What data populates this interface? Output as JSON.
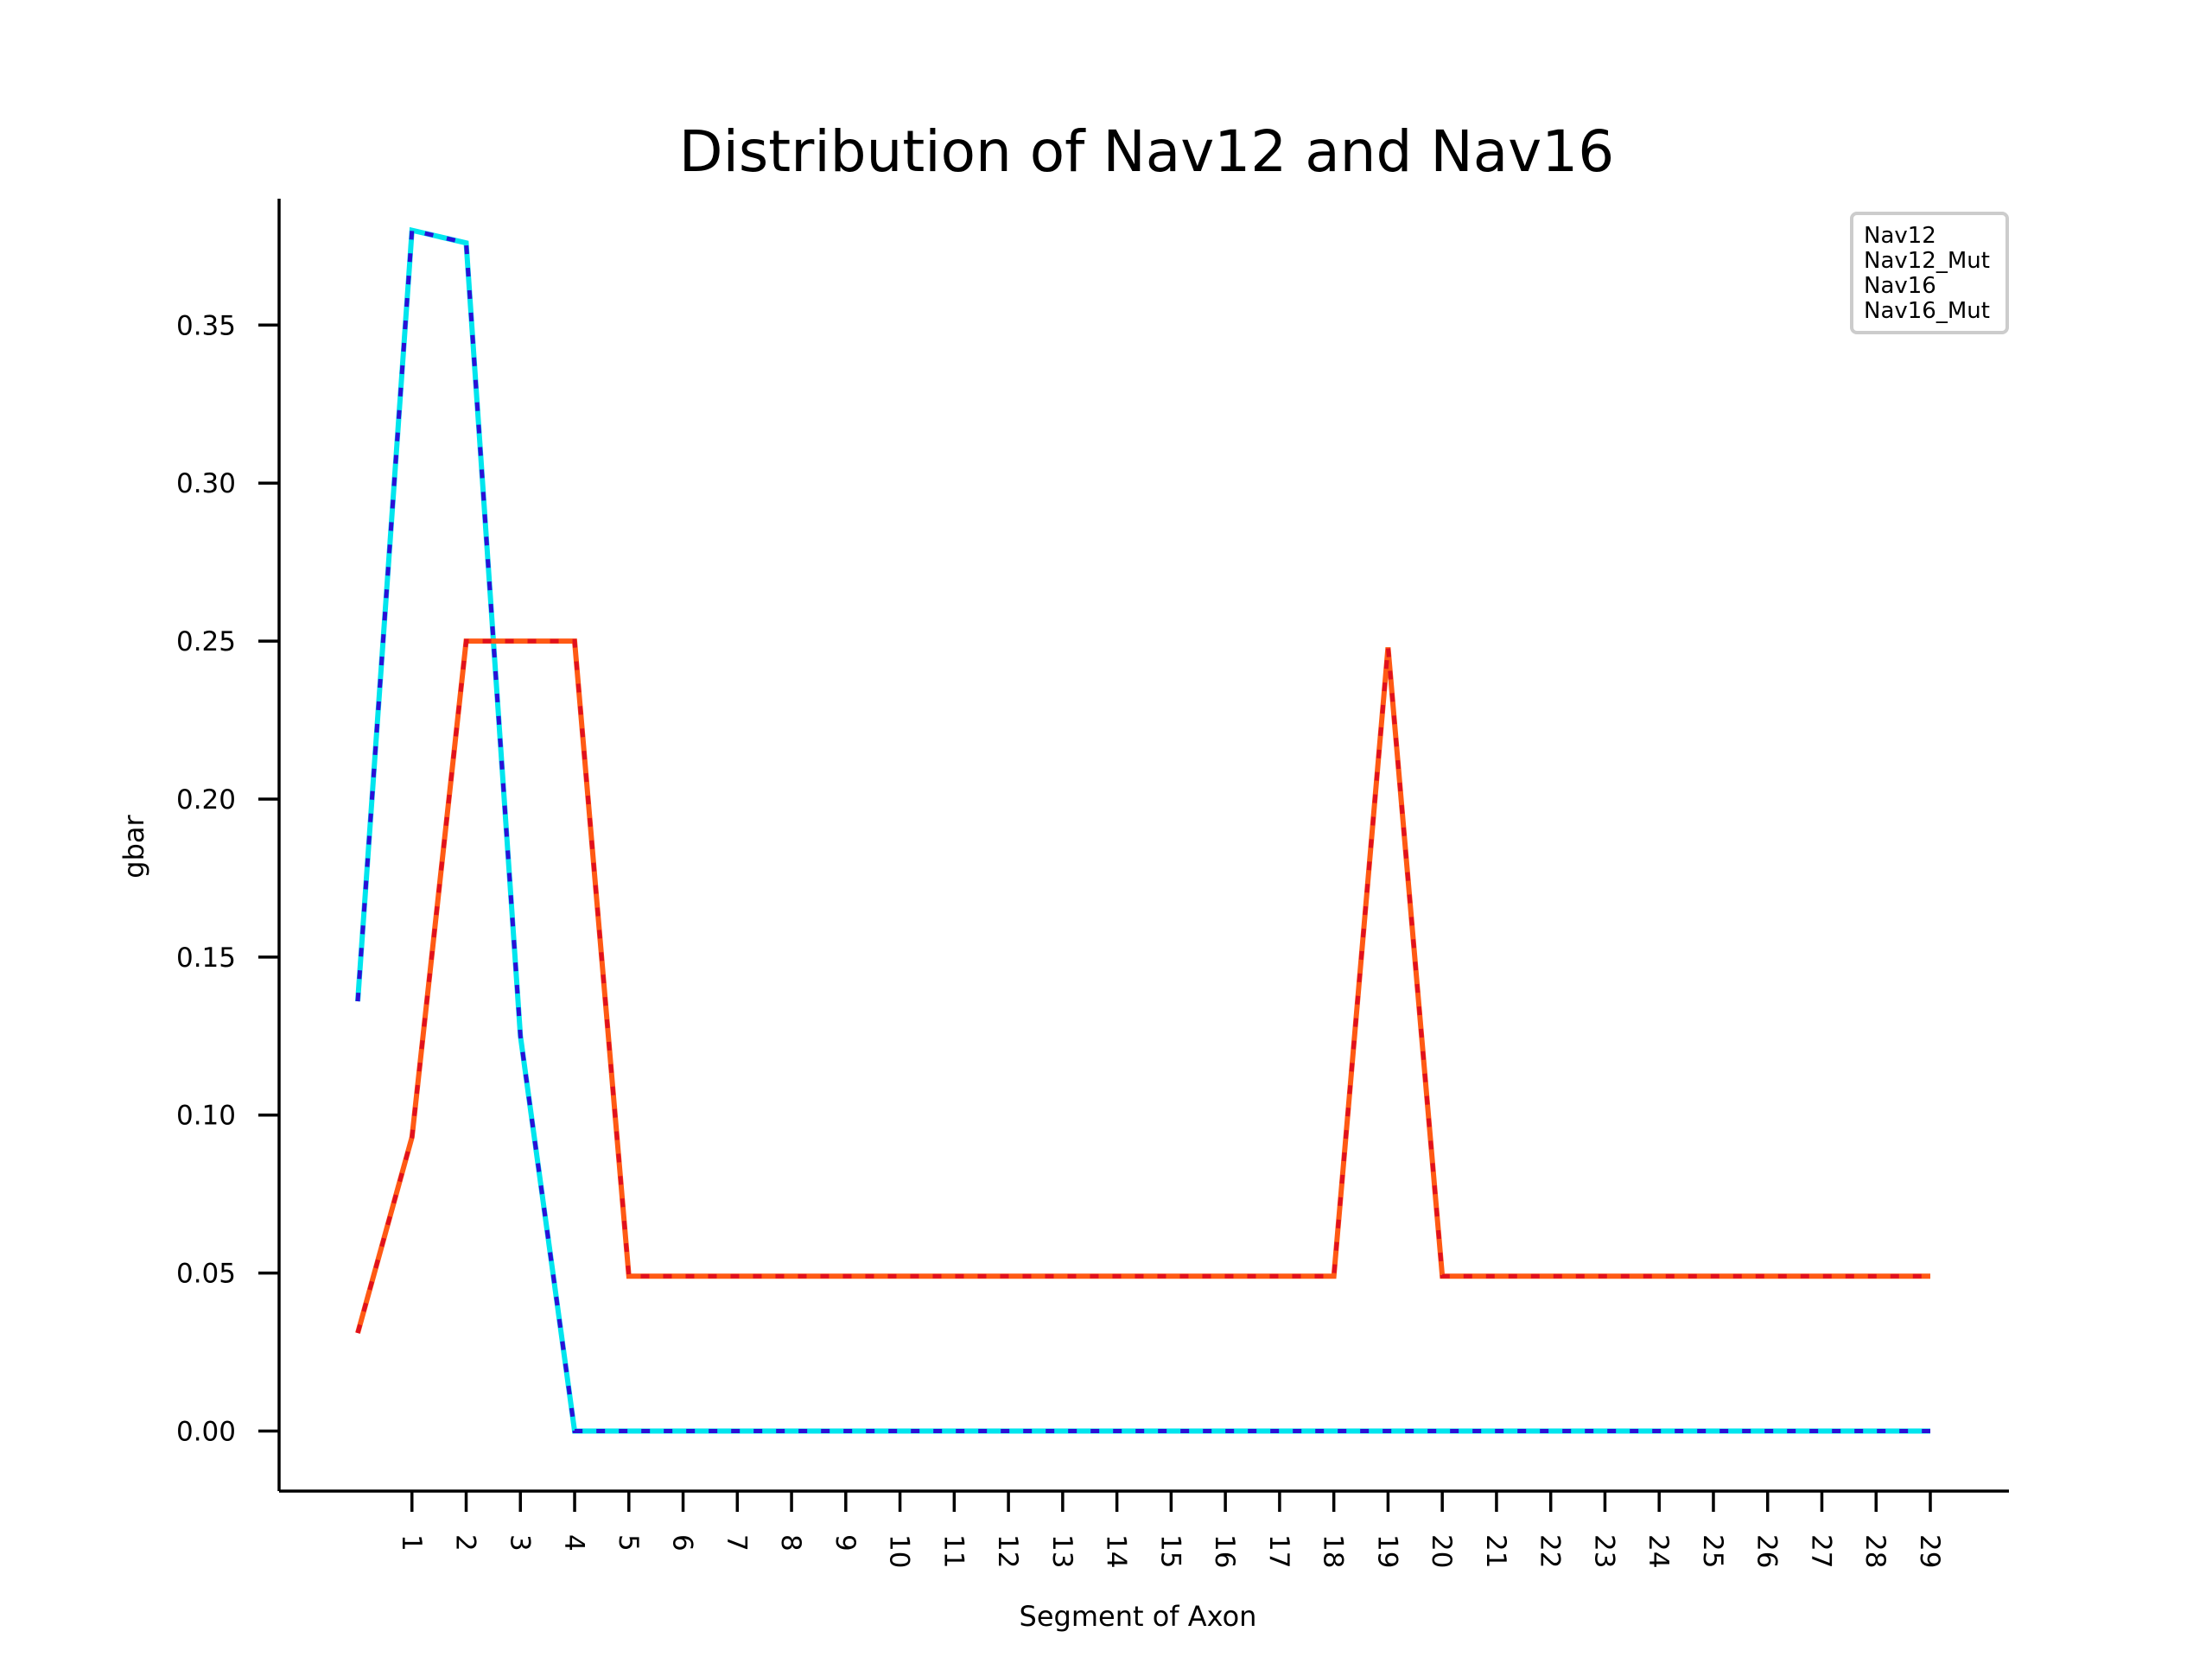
{
  "chart_data": {
    "type": "line",
    "title": "Distribution of Nav12 and Nav16",
    "xlabel": "Segment of Axon",
    "ylabel": "gbar",
    "x": [
      0,
      1,
      2,
      3,
      4,
      5,
      6,
      7,
      8,
      9,
      10,
      11,
      12,
      13,
      14,
      15,
      16,
      17,
      18,
      19,
      20,
      21,
      22,
      23,
      24,
      25,
      26,
      27,
      28,
      29
    ],
    "xticks": [
      1,
      2,
      3,
      4,
      5,
      6,
      7,
      8,
      9,
      10,
      11,
      12,
      13,
      14,
      15,
      16,
      17,
      18,
      19,
      20,
      21,
      22,
      23,
      24,
      25,
      26,
      27,
      28,
      29
    ],
    "xtick_labels": [
      "1",
      "2",
      "3",
      "4",
      "5",
      "6",
      "7",
      "8",
      "9",
      "10",
      "11",
      "12",
      "13",
      "14",
      "15",
      "16",
      "17",
      "18",
      "19",
      "20",
      "21",
      "22",
      "23",
      "24",
      "25",
      "26",
      "27",
      "28",
      "29"
    ],
    "yticks": [
      0.0,
      0.05,
      0.1,
      0.15,
      0.2,
      0.25,
      0.3,
      0.35
    ],
    "ytick_labels": [
      "0.00",
      "0.05",
      "0.10",
      "0.15",
      "0.20",
      "0.25",
      "0.30",
      "0.35"
    ],
    "xlim": [
      -1.45,
      30.45
    ],
    "ylim": [
      -0.019,
      0.39
    ],
    "grid": false,
    "legend": {
      "placement": "top-right",
      "entries": [
        "Nav12",
        "Nav12_Mut",
        "Nav16",
        "Nav16_Mut"
      ]
    },
    "series": [
      {
        "name": "Nav12",
        "color": "#00e5ee",
        "style": "solid",
        "values": [
          0.136,
          0.38,
          0.376,
          0.125,
          0.0,
          0.0,
          0.0,
          0.0,
          0.0,
          0.0,
          0.0,
          0.0,
          0.0,
          0.0,
          0.0,
          0.0,
          0.0,
          0.0,
          0.0,
          0.0,
          0.0,
          0.0,
          0.0,
          0.0,
          0.0,
          0.0,
          0.0,
          0.0,
          0.0,
          0.0
        ]
      },
      {
        "name": "Nav12_Mut",
        "color": "#2a0fd6",
        "style": "dashed",
        "values": [
          0.136,
          0.38,
          0.376,
          0.125,
          0.0,
          0.0,
          0.0,
          0.0,
          0.0,
          0.0,
          0.0,
          0.0,
          0.0,
          0.0,
          0.0,
          0.0,
          0.0,
          0.0,
          0.0,
          0.0,
          0.0,
          0.0,
          0.0,
          0.0,
          0.0,
          0.0,
          0.0,
          0.0,
          0.0,
          0.0
        ]
      },
      {
        "name": "Nav16",
        "color": "#ff5a14",
        "style": "solid",
        "values": [
          0.031,
          0.093,
          0.25,
          0.25,
          0.25,
          0.049,
          0.049,
          0.049,
          0.049,
          0.049,
          0.049,
          0.049,
          0.049,
          0.049,
          0.049,
          0.049,
          0.049,
          0.049,
          0.049,
          0.248,
          0.049,
          0.049,
          0.049,
          0.049,
          0.049,
          0.049,
          0.049,
          0.049,
          0.049,
          0.049
        ]
      },
      {
        "name": "Nav16_Mut",
        "color": "#e0101e",
        "style": "dashed",
        "values": [
          0.031,
          0.093,
          0.25,
          0.25,
          0.25,
          0.049,
          0.049,
          0.049,
          0.049,
          0.049,
          0.049,
          0.049,
          0.049,
          0.049,
          0.049,
          0.049,
          0.049,
          0.049,
          0.049,
          0.248,
          0.049,
          0.049,
          0.049,
          0.049,
          0.049,
          0.049,
          0.049,
          0.049,
          0.049,
          0.049
        ]
      }
    ]
  }
}
